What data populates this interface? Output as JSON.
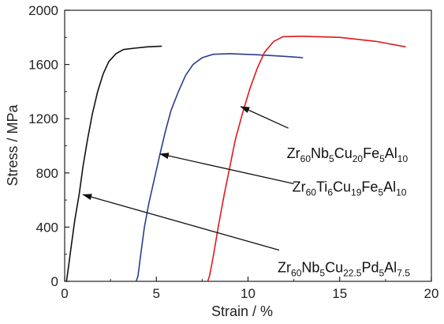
{
  "chart_data": {
    "type": "line",
    "xlabel": "Strain / %",
    "ylabel": "Stress / MPa",
    "xlim": [
      0,
      20
    ],
    "ylim": [
      0,
      2000
    ],
    "xticks": [
      0,
      5,
      10,
      15,
      20
    ],
    "yticks": [
      0,
      400,
      800,
      1200,
      1600,
      2000
    ],
    "grid": false,
    "series": [
      {
        "color": "#111111",
        "points": [
          [
            0.1,
            0
          ],
          [
            0.2,
            100
          ],
          [
            0.35,
            250
          ],
          [
            0.55,
            450
          ],
          [
            0.8,
            650
          ],
          [
            1.0,
            850
          ],
          [
            1.25,
            1050
          ],
          [
            1.5,
            1230
          ],
          [
            1.8,
            1400
          ],
          [
            2.1,
            1530
          ],
          [
            2.4,
            1620
          ],
          [
            2.8,
            1680
          ],
          [
            3.2,
            1710
          ],
          [
            3.8,
            1720
          ],
          [
            4.5,
            1730
          ],
          [
            5.3,
            1735
          ]
        ]
      },
      {
        "color": "#2a3d8f",
        "points": [
          [
            3.9,
            0
          ],
          [
            4.0,
            40
          ],
          [
            4.15,
            200
          ],
          [
            4.35,
            400
          ],
          [
            4.6,
            580
          ],
          [
            4.9,
            760
          ],
          [
            5.2,
            940
          ],
          [
            5.5,
            1110
          ],
          [
            5.8,
            1260
          ],
          [
            6.2,
            1400
          ],
          [
            6.6,
            1520
          ],
          [
            7.0,
            1600
          ],
          [
            7.5,
            1650
          ],
          [
            8.1,
            1675
          ],
          [
            9.0,
            1680
          ],
          [
            10.5,
            1672
          ],
          [
            12.0,
            1660
          ],
          [
            13.0,
            1650
          ]
        ]
      },
      {
        "color": "#e0181b",
        "points": [
          [
            7.8,
            0
          ],
          [
            7.9,
            40
          ],
          [
            8.1,
            180
          ],
          [
            8.4,
            420
          ],
          [
            8.7,
            640
          ],
          [
            9.0,
            840
          ],
          [
            9.3,
            1040
          ],
          [
            9.7,
            1240
          ],
          [
            10.1,
            1420
          ],
          [
            10.5,
            1570
          ],
          [
            10.9,
            1690
          ],
          [
            11.4,
            1770
          ],
          [
            11.9,
            1805
          ],
          [
            13.0,
            1808
          ],
          [
            15.0,
            1800
          ],
          [
            17.0,
            1770
          ],
          [
            18.6,
            1730
          ]
        ]
      }
    ],
    "annotations": [
      {
        "parts": [
          [
            "Zr",
            ""
          ],
          [
            "60",
            "sub"
          ],
          [
            "Nb",
            ""
          ],
          [
            "5",
            "sub"
          ],
          [
            "Cu",
            ""
          ],
          [
            "20",
            "sub"
          ],
          [
            "Fe",
            ""
          ],
          [
            "5",
            "sub"
          ],
          [
            "Al",
            ""
          ],
          [
            "10",
            "sub"
          ]
        ],
        "arrow_to": [
          9.6,
          1290
        ],
        "arrow_from": [
          12.2,
          1130
        ]
      },
      {
        "parts": [
          [
            "Zr",
            ""
          ],
          [
            "60",
            "sub"
          ],
          [
            "Ti",
            ""
          ],
          [
            "6",
            "sub"
          ],
          [
            "Cu",
            ""
          ],
          [
            "19",
            "sub"
          ],
          [
            "Fe",
            ""
          ],
          [
            "5",
            "sub"
          ],
          [
            "Al",
            ""
          ],
          [
            "10",
            "sub"
          ]
        ],
        "arrow_to": [
          5.2,
          940
        ],
        "arrow_from": [
          12.5,
          720
        ]
      },
      {
        "parts": [
          [
            "Zr",
            ""
          ],
          [
            "60",
            "sub"
          ],
          [
            "Nb",
            ""
          ],
          [
            "5",
            "sub"
          ],
          [
            "Cu",
            ""
          ],
          [
            "22.5",
            "sub"
          ],
          [
            "Pd",
            ""
          ],
          [
            "5",
            "sub"
          ],
          [
            "Al",
            ""
          ],
          [
            "7.5",
            "sub"
          ]
        ],
        "arrow_to": [
          1.0,
          640
        ],
        "arrow_from": [
          11.7,
          230
        ]
      }
    ]
  }
}
